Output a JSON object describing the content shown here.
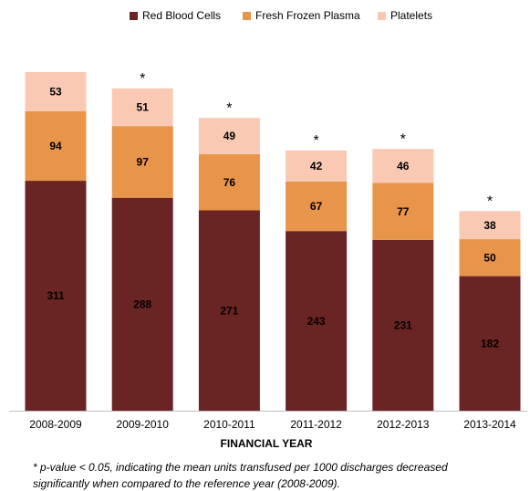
{
  "chart_data": {
    "type": "stacked_bar",
    "categories": [
      "2008-2009",
      "2009-2010",
      "2010-2011",
      "2011-2012",
      "2012-2013",
      "2013-2014"
    ],
    "series": [
      {
        "name": "Red Blood Cells",
        "color": "#6b2424",
        "label_color": "#ffffff",
        "values": [
          311,
          288,
          271,
          243,
          231,
          182
        ]
      },
      {
        "name": "Fresh Frozen Plasma",
        "color": "#e8944a",
        "label_color": "#000000",
        "values": [
          94,
          97,
          76,
          67,
          77,
          50
        ]
      },
      {
        "name": "Platelets",
        "color": "#f9c9b4",
        "label_color": "#000000",
        "values": [
          53,
          51,
          49,
          42,
          46,
          38
        ]
      }
    ],
    "significance": [
      null,
      "*",
      "*",
      "*",
      "*",
      "*"
    ],
    "x_label": "FINANCIAL YEAR",
    "footnote": [
      "* p-value < 0.05, indicating the mean units transfused per 1000 discharges decreased",
      "significantly when compared to the reference year (2008-2009)."
    ]
  }
}
